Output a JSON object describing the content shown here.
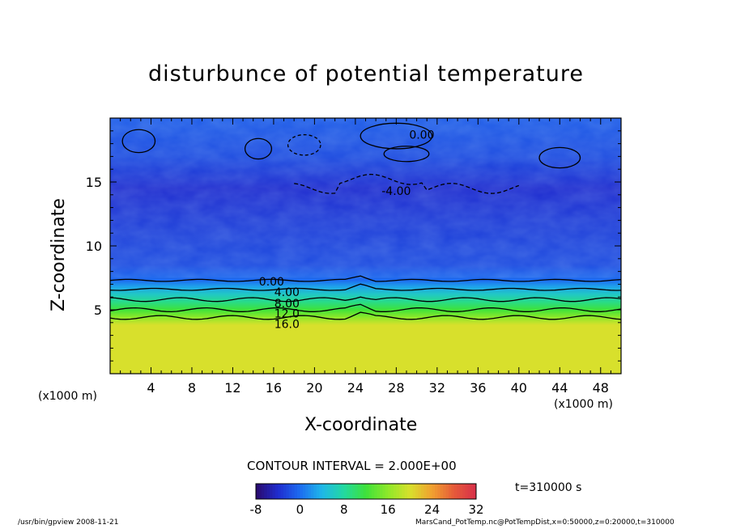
{
  "chart_data": {
    "type": "heatmap",
    "title": "disturbunce of potential temperature",
    "xlabel": "X-coordinate",
    "ylabel": "Z-coordinate",
    "x_unit_left": "(x1000 m)",
    "x_unit_right": "(x1000 m)",
    "xlim": [
      0,
      50
    ],
    "ylim": [
      0,
      20
    ],
    "x_ticks": [
      4,
      8,
      12,
      16,
      20,
      24,
      28,
      32,
      36,
      40,
      44,
      48
    ],
    "y_ticks": [
      5,
      10,
      15
    ],
    "contour_interval": "CONTOUR INTERVAL = 2.000E+00",
    "time_label": "t=310000 s",
    "colorbar": {
      "min": -8,
      "max": 32,
      "ticks": [
        -8,
        0,
        8,
        16,
        24,
        32
      ],
      "colors": [
        "#2a0a6b",
        "#1f2ccf",
        "#1d6cf0",
        "#1fb7e8",
        "#22d9a0",
        "#3fe23a",
        "#8fe82a",
        "#d8e02c",
        "#f0a030",
        "#e65a3a",
        "#d8304a"
      ]
    },
    "contour_labels": [
      {
        "text": "0.00",
        "x": 30.5,
        "z": 18.7
      },
      {
        "text": "-4.00",
        "x": 28.0,
        "z": 14.3
      },
      {
        "text": "0.00",
        "x": 15.8,
        "z": 7.2
      },
      {
        "text": "4.00",
        "x": 17.3,
        "z": 6.4
      },
      {
        "text": "8.00",
        "x": 17.3,
        "z": 5.5
      },
      {
        "text": "12.0",
        "x": 17.3,
        "z": 4.7
      },
      {
        "text": "16.0",
        "x": 17.3,
        "z": 3.9
      }
    ],
    "vertical_profile": [
      {
        "z": 0.0,
        "value": 20
      },
      {
        "z": 3.8,
        "value": 20
      },
      {
        "z": 4.4,
        "value": 16
      },
      {
        "z": 5.0,
        "value": 12
      },
      {
        "z": 5.6,
        "value": 9
      },
      {
        "z": 6.2,
        "value": 6
      },
      {
        "z": 6.8,
        "value": 3
      },
      {
        "z": 7.3,
        "value": 0
      },
      {
        "z": 8.5,
        "value": -2
      },
      {
        "z": 12.0,
        "value": -3
      },
      {
        "z": 14.5,
        "value": -4
      },
      {
        "z": 17.0,
        "value": -2
      },
      {
        "z": 20.0,
        "value": -1
      }
    ]
  },
  "footer": {
    "left": "/usr/bin/gpview   2008-11-21",
    "right": "MarsCand_PotTemp.nc@PotTempDist,x=0:50000,z=0:20000,t=310000"
  }
}
